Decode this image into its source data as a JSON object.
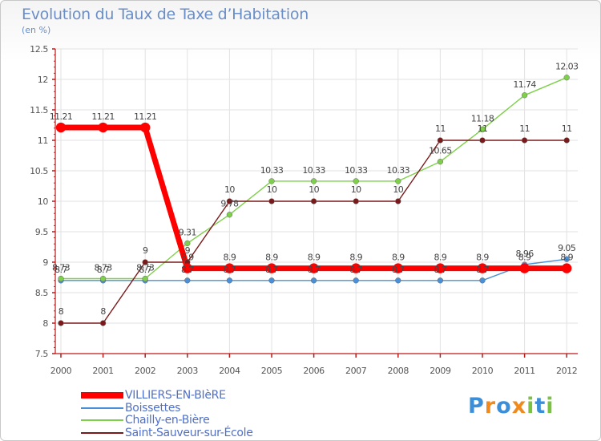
{
  "chart_data": {
    "type": "line",
    "title": "Evolution du Taux de Taxe d’Habitation",
    "subtitle": "(en %)",
    "xlabel": "",
    "ylabel": "",
    "ylim": [
      7.5,
      12.5
    ],
    "y_ticks": [
      "7.5",
      "8",
      "8.5",
      "9",
      "9.5",
      "10",
      "10.5",
      "11",
      "11.5",
      "12",
      "12.5"
    ],
    "categories": [
      "2000",
      "2001",
      "2002",
      "2003",
      "2004",
      "2005",
      "2006",
      "2007",
      "2008",
      "2009",
      "2010",
      "2011",
      "2012"
    ],
    "series": [
      {
        "name": "VILLIERS-EN-BIèRE",
        "color": "#ff0000",
        "values": [
          11.21,
          11.21,
          11.21,
          8.9,
          8.9,
          8.9,
          8.9,
          8.9,
          8.9,
          8.9,
          8.9,
          8.9,
          8.9
        ],
        "labels": [
          "11.21",
          "11.21",
          "11.21",
          "8.9",
          "8.9",
          "8.9",
          "8.9",
          "8.9",
          "8.9",
          "8.9",
          "8.9",
          "8.9",
          "8.9"
        ]
      },
      {
        "name": "Boissettes",
        "color": "#4a90d8",
        "values": [
          8.7,
          8.7,
          8.7,
          8.7,
          8.7,
          8.7,
          8.7,
          8.7,
          8.7,
          8.7,
          8.7,
          8.96,
          9.05
        ],
        "labels": [
          "8.7",
          "8.7",
          "8.7",
          "8.7",
          "8.7",
          "8.7",
          "8.7",
          "8.7",
          "8.7",
          "8.7",
          "8.7",
          "8.96",
          "9.05"
        ]
      },
      {
        "name": "Chailly-en-Bière",
        "color": "#7ed04a",
        "values": [
          8.73,
          8.73,
          8.73,
          9.31,
          9.78,
          10.33,
          10.33,
          10.33,
          10.33,
          10.65,
          11.18,
          11.74,
          12.03
        ],
        "labels": [
          "8.73",
          "8.73",
          "8.73",
          "9.31",
          "9.78",
          "10.33",
          "10.33",
          "10.33",
          "10.33",
          "10.65",
          "11.18",
          "11.74",
          "12.03"
        ]
      },
      {
        "name": "Saint-Sauveur-sur-École",
        "color": "#7a1a1a",
        "values": [
          8,
          8,
          9,
          9,
          10,
          10,
          10,
          10,
          10,
          11,
          11,
          11,
          11
        ],
        "labels": [
          "8",
          "8",
          "9",
          "9",
          "10",
          "10",
          "10",
          "10",
          "10",
          "11",
          "11",
          "11",
          "11"
        ]
      }
    ]
  },
  "legend": {
    "items": [
      "VILLIERS-EN-BIèRE",
      "Boissettes",
      "Chailly-en-Bière",
      "Saint-Sauveur-sur-École"
    ]
  },
  "brand": {
    "letters": [
      "P",
      "r",
      "o",
      "x",
      "i",
      "t",
      "i"
    ],
    "colors": [
      "#3b8fd8",
      "#f08a1c",
      "#3b8fd8",
      "#f08a1c",
      "#7cc242",
      "#3b8fd8",
      "#7cc242"
    ]
  }
}
